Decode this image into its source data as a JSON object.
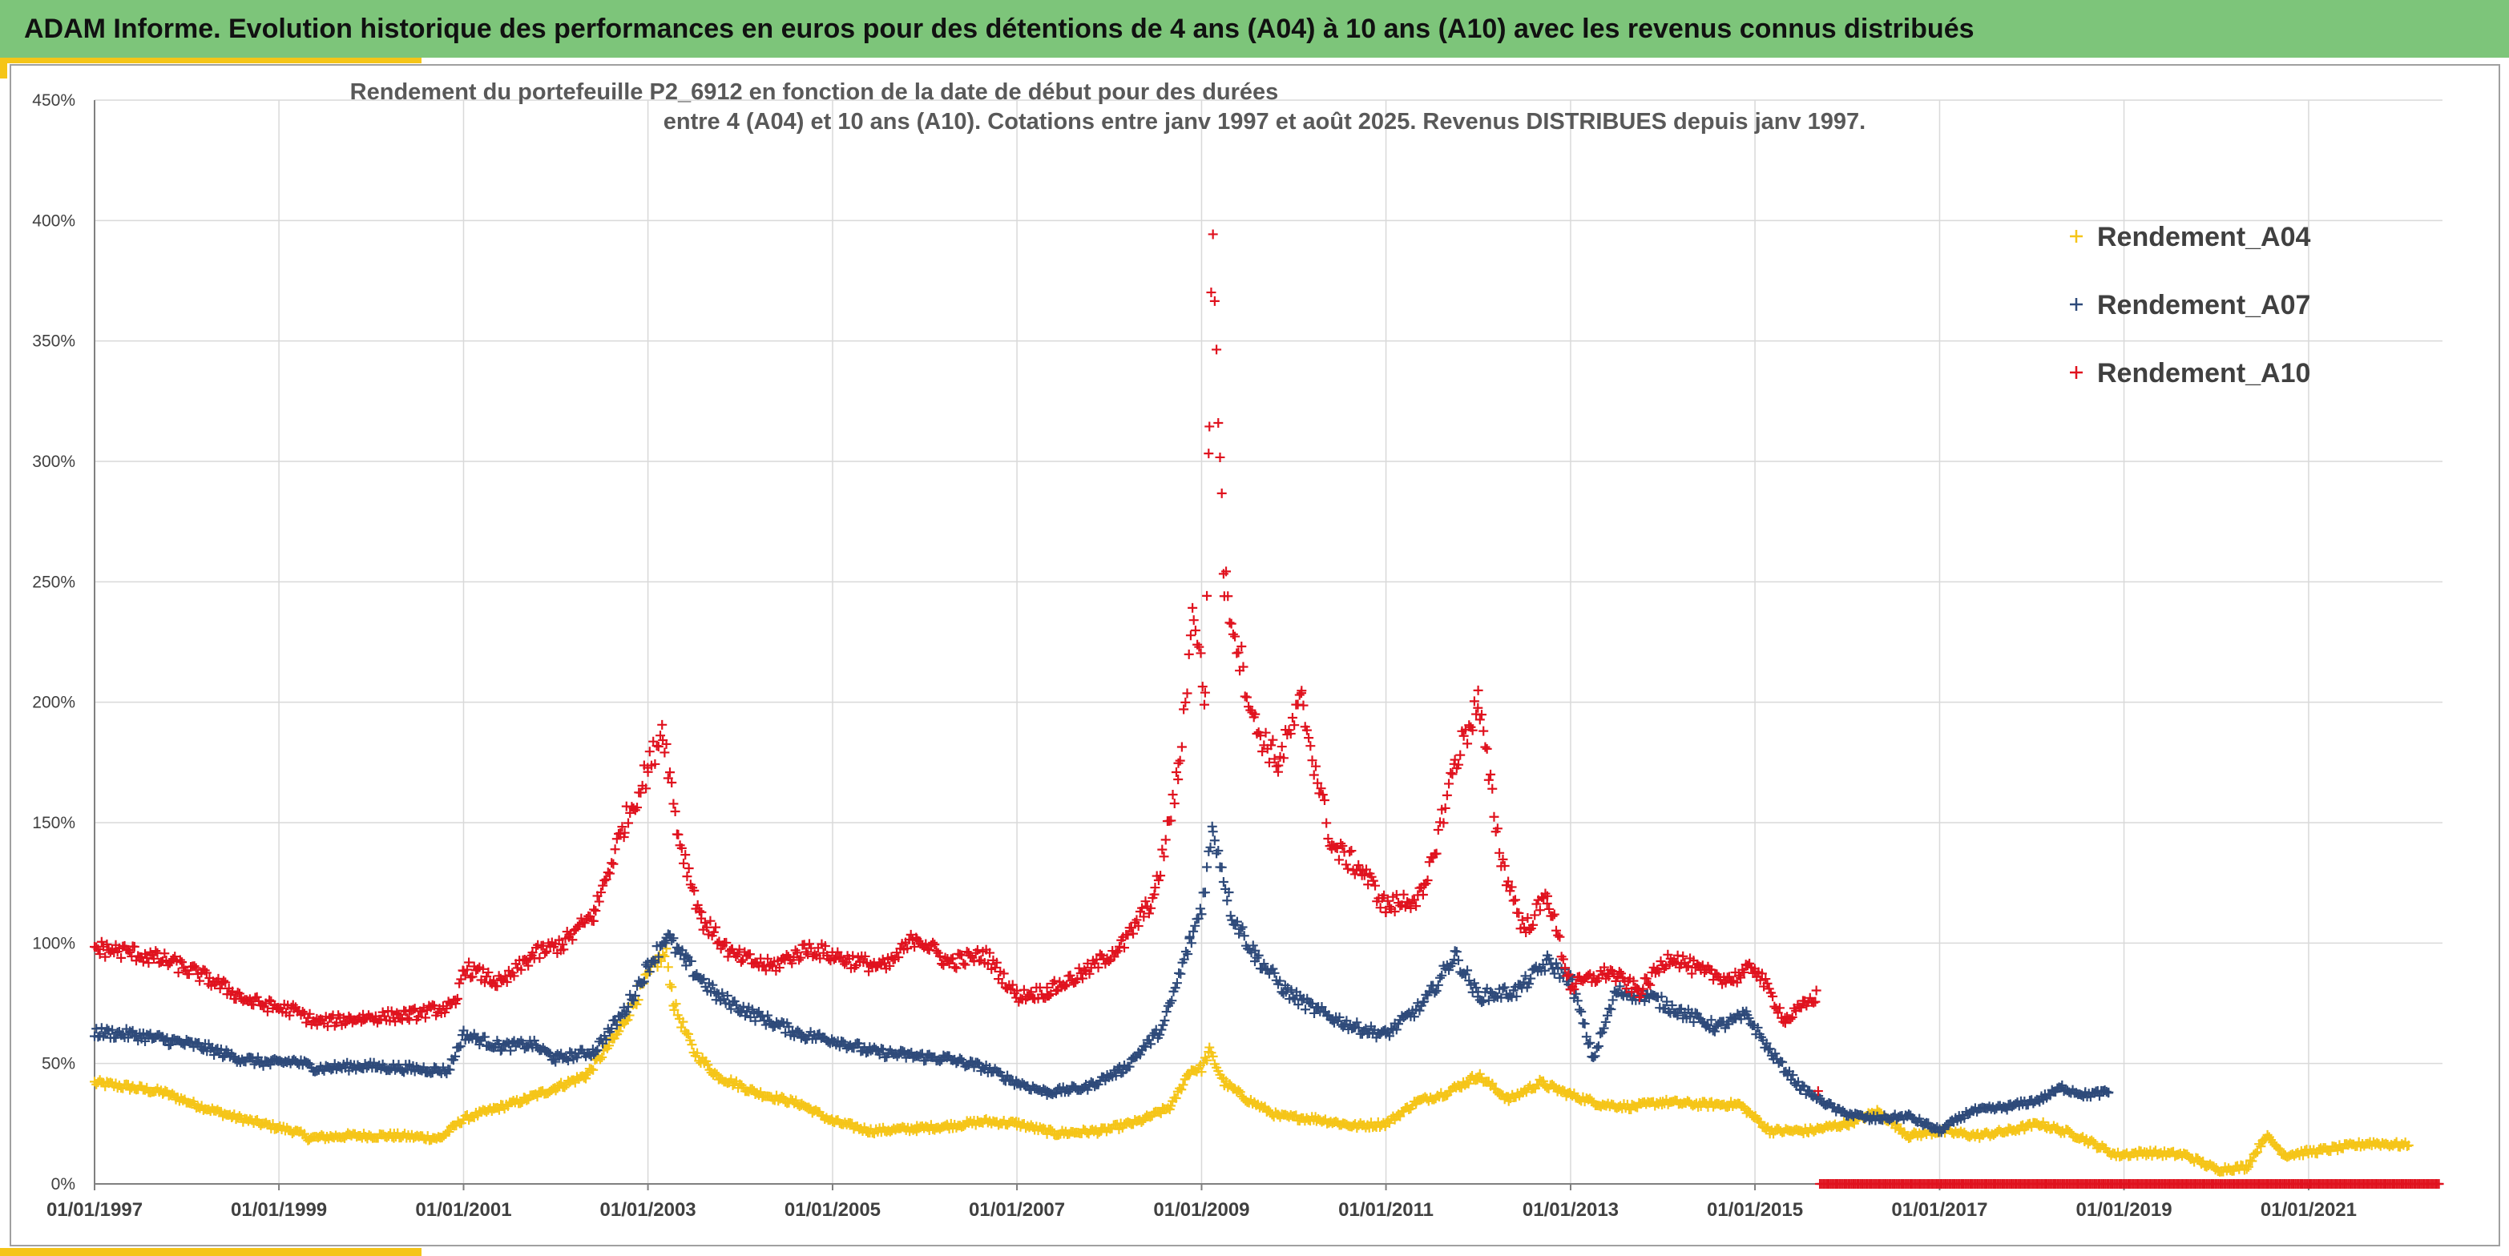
{
  "header": {
    "banner": "ADAM Informe. Evolution historique des performances en euros pour des détentions de 4 ans (A04) à 10 ans (A10) avec les revenus connus distribués"
  },
  "colors": {
    "banner_bg": "#7dc57a",
    "accent": "#f5c518",
    "a04": "#f5c518",
    "a07": "#2e4a7a",
    "a10": "#e0121e",
    "grid": "#d9d9d9"
  },
  "chart_data": {
    "type": "scatter",
    "title": [
      "Rendement du portefeuille P2_6912 en fonction de la date de début pour des durées",
      "entre 4 (A04) et 10 ans (A10). Cotations entre janv 1997 et août 2025. Revenus DISTRIBUES depuis janv 1997."
    ],
    "marker": "+",
    "grid": true,
    "legend_position": "top-right",
    "x_range": [
      "1997-01-01",
      "2022-06-15"
    ],
    "y_range": [
      0,
      450
    ],
    "y_unit": "%",
    "y_ticks": [
      "0%",
      "50%",
      "100%",
      "150%",
      "200%",
      "250%",
      "300%",
      "350%",
      "400%",
      "450%"
    ],
    "x_ticks": [
      "01/01/1997",
      "01/01/1999",
      "01/01/2001",
      "01/01/2003",
      "01/01/2005",
      "01/01/2007",
      "01/01/2009",
      "01/01/2011",
      "01/01/2013",
      "01/01/2015",
      "01/01/2017",
      "01/01/2019",
      "01/01/2021"
    ],
    "series": [
      {
        "name": "Rendement_A04",
        "color": "#f5c518",
        "points": [
          [
            "1997-01-01",
            42
          ],
          [
            "1997-06-01",
            40
          ],
          [
            "1997-10-01",
            38
          ],
          [
            "1998-02-01",
            33
          ],
          [
            "1998-07-01",
            28
          ],
          [
            "1998-12-01",
            24
          ],
          [
            "1999-03-01",
            22
          ],
          [
            "1999-05-01",
            19
          ],
          [
            "1999-10-01",
            20
          ],
          [
            "2000-04-01",
            20
          ],
          [
            "2000-10-01",
            19
          ],
          [
            "2001-01-01",
            27
          ],
          [
            "2001-05-01",
            31
          ],
          [
            "2001-09-01",
            35
          ],
          [
            "2002-01-01",
            40
          ],
          [
            "2002-05-01",
            45
          ],
          [
            "2002-09-01",
            62
          ],
          [
            "2002-12-01",
            80
          ],
          [
            "2003-02-01",
            92
          ],
          [
            "2003-03-15",
            95
          ],
          [
            "2003-04-15",
            74
          ],
          [
            "2003-07-01",
            55
          ],
          [
            "2003-10-01",
            45
          ],
          [
            "2004-03-01",
            38
          ],
          [
            "2004-09-01",
            33
          ],
          [
            "2005-01-01",
            26
          ],
          [
            "2005-06-01",
            22
          ],
          [
            "2005-12-01",
            23
          ],
          [
            "2006-04-01",
            24
          ],
          [
            "2006-09-01",
            26
          ],
          [
            "2007-01-01",
            25
          ],
          [
            "2007-06-01",
            21
          ],
          [
            "2007-12-01",
            22
          ],
          [
            "2008-05-01",
            26
          ],
          [
            "2008-09-01",
            32
          ],
          [
            "2008-11-15",
            47
          ],
          [
            "2009-01-01",
            48
          ],
          [
            "2009-02-01",
            55
          ],
          [
            "2009-04-01",
            42
          ],
          [
            "2009-07-01",
            35
          ],
          [
            "2009-11-01",
            28
          ],
          [
            "2010-04-01",
            27
          ],
          [
            "2010-09-01",
            24
          ],
          [
            "2011-01-01",
            25
          ],
          [
            "2011-05-01",
            34
          ],
          [
            "2011-09-01",
            38
          ],
          [
            "2012-01-01",
            45
          ],
          [
            "2012-05-01",
            35
          ],
          [
            "2012-09-01",
            42
          ],
          [
            "2013-01-01",
            37
          ],
          [
            "2013-05-01",
            33
          ],
          [
            "2013-09-01",
            32
          ],
          [
            "2014-01-01",
            34
          ],
          [
            "2014-06-01",
            33
          ],
          [
            "2014-11-01",
            33
          ],
          [
            "2015-03-01",
            22
          ],
          [
            "2015-08-01",
            22
          ],
          [
            "2016-01-01",
            25
          ],
          [
            "2016-05-01",
            30
          ],
          [
            "2016-09-01",
            20
          ],
          [
            "2017-01-01",
            22
          ],
          [
            "2017-06-01",
            20
          ],
          [
            "2017-10-01",
            22
          ],
          [
            "2018-02-01",
            25
          ],
          [
            "2018-07-01",
            20
          ],
          [
            "2018-12-01",
            12
          ],
          [
            "2019-04-01",
            13
          ],
          [
            "2019-09-01",
            12
          ],
          [
            "2020-01-01",
            6
          ],
          [
            "2020-05-01",
            7
          ],
          [
            "2020-07-15",
            20
          ],
          [
            "2020-10-01",
            12
          ],
          [
            "2021-03-01",
            14
          ],
          [
            "2021-09-01",
            17
          ],
          [
            "2022-02-01",
            16
          ]
        ]
      },
      {
        "name": "Rendement_A07",
        "color": "#2e4a7a",
        "points": [
          [
            "1997-01-01",
            63
          ],
          [
            "1997-06-01",
            62
          ],
          [
            "1997-10-01",
            60
          ],
          [
            "1998-03-01",
            57
          ],
          [
            "1998-08-01",
            52
          ],
          [
            "1998-12-01",
            50
          ],
          [
            "1999-03-01",
            51
          ],
          [
            "1999-06-01",
            48
          ],
          [
            "1999-12-01",
            49
          ],
          [
            "2000-06-01",
            48
          ],
          [
            "2000-11-01",
            47
          ],
          [
            "2001-01-01",
            62
          ],
          [
            "2001-06-01",
            57
          ],
          [
            "2001-10-01",
            58
          ],
          [
            "2002-01-01",
            52
          ],
          [
            "2002-06-01",
            55
          ],
          [
            "2002-10-01",
            72
          ],
          [
            "2003-01-01",
            90
          ],
          [
            "2003-03-15",
            103
          ],
          [
            "2003-06-01",
            92
          ],
          [
            "2003-10-01",
            78
          ],
          [
            "2004-03-01",
            70
          ],
          [
            "2004-09-01",
            62
          ],
          [
            "2005-01-01",
            60
          ],
          [
            "2005-06-01",
            55
          ],
          [
            "2005-12-01",
            53
          ],
          [
            "2006-04-01",
            52
          ],
          [
            "2006-09-01",
            48
          ],
          [
            "2007-01-01",
            42
          ],
          [
            "2007-05-01",
            38
          ],
          [
            "2007-10-01",
            40
          ],
          [
            "2008-03-01",
            48
          ],
          [
            "2008-08-01",
            65
          ],
          [
            "2008-11-15",
            100
          ],
          [
            "2009-01-01",
            115
          ],
          [
            "2009-02-15",
            148
          ],
          [
            "2009-05-01",
            112
          ],
          [
            "2009-08-01",
            95
          ],
          [
            "2009-12-01",
            80
          ],
          [
            "2010-04-01",
            72
          ],
          [
            "2010-09-01",
            65
          ],
          [
            "2011-01-01",
            62
          ],
          [
            "2011-06-01",
            75
          ],
          [
            "2011-10-01",
            95
          ],
          [
            "2012-01-01",
            78
          ],
          [
            "2012-06-01",
            80
          ],
          [
            "2012-10-01",
            92
          ],
          [
            "2013-01-01",
            85
          ],
          [
            "2013-04-01",
            52
          ],
          [
            "2013-07-01",
            80
          ],
          [
            "2013-11-01",
            78
          ],
          [
            "2014-03-01",
            72
          ],
          [
            "2014-08-01",
            65
          ],
          [
            "2014-12-01",
            70
          ],
          [
            "2015-03-01",
            55
          ],
          [
            "2015-07-01",
            40
          ],
          [
            "2015-12-01",
            30
          ],
          [
            "2016-04-01",
            27
          ],
          [
            "2016-09-01",
            28
          ],
          [
            "2017-01-01",
            22
          ],
          [
            "2017-05-01",
            30
          ],
          [
            "2017-10-01",
            32
          ],
          [
            "2018-02-01",
            35
          ],
          [
            "2018-05-01",
            40
          ],
          [
            "2018-08-01",
            37
          ],
          [
            "2018-11-01",
            38
          ]
        ]
      },
      {
        "name": "Rendement_A10",
        "color": "#e0121e",
        "points": [
          [
            "1997-01-01",
            98
          ],
          [
            "1997-06-01",
            96
          ],
          [
            "1997-11-01",
            92
          ],
          [
            "1998-04-01",
            85
          ],
          [
            "1998-09-01",
            76
          ],
          [
            "1999-01-01",
            73
          ],
          [
            "1999-03-01",
            72
          ],
          [
            "1999-06-01",
            67
          ],
          [
            "1999-12-01",
            69
          ],
          [
            "2000-06-01",
            70
          ],
          [
            "2000-12-01",
            74
          ],
          [
            "2001-01-01",
            90
          ],
          [
            "2001-06-01",
            83
          ],
          [
            "2001-10-01",
            95
          ],
          [
            "2002-02-01",
            100
          ],
          [
            "2002-06-01",
            112
          ],
          [
            "2002-10-01",
            150
          ],
          [
            "2003-01-01",
            172
          ],
          [
            "2003-03-01",
            190
          ],
          [
            "2003-05-01",
            145
          ],
          [
            "2003-08-01",
            110
          ],
          [
            "2003-12-01",
            95
          ],
          [
            "2004-05-01",
            90
          ],
          [
            "2004-10-01",
            98
          ],
          [
            "2005-03-01",
            93
          ],
          [
            "2005-08-01",
            90
          ],
          [
            "2005-12-01",
            103
          ],
          [
            "2006-04-01",
            92
          ],
          [
            "2006-09-01",
            95
          ],
          [
            "2007-01-01",
            78
          ],
          [
            "2007-05-01",
            80
          ],
          [
            "2007-10-01",
            88
          ],
          [
            "2008-03-01",
            100
          ],
          [
            "2008-07-01",
            120
          ],
          [
            "2008-10-01",
            170
          ],
          [
            "2008-12-01",
            240
          ],
          [
            "2009-01-15",
            200
          ],
          [
            "2009-02-01",
            323
          ],
          [
            "2009-02-15",
            395
          ],
          [
            "2009-03-01",
            345
          ],
          [
            "2009-04-01",
            250
          ],
          [
            "2009-06-01",
            220
          ],
          [
            "2009-08-01",
            190
          ],
          [
            "2009-11-01",
            175
          ],
          [
            "2010-02-01",
            200
          ],
          [
            "2010-06-01",
            140
          ],
          [
            "2010-10-01",
            130
          ],
          [
            "2011-01-01",
            115
          ],
          [
            "2011-06-01",
            120
          ],
          [
            "2011-10-01",
            175
          ],
          [
            "2012-01-01",
            200
          ],
          [
            "2012-04-01",
            135
          ],
          [
            "2012-07-01",
            105
          ],
          [
            "2012-10-01",
            120
          ],
          [
            "2013-01-01",
            82
          ],
          [
            "2013-06-01",
            88
          ],
          [
            "2013-10-01",
            80
          ],
          [
            "2014-02-01",
            95
          ],
          [
            "2014-06-01",
            88
          ],
          [
            "2014-10-01",
            85
          ],
          [
            "2015-01-01",
            90
          ],
          [
            "2015-05-01",
            68
          ],
          [
            "2015-09-01",
            78
          ],
          [
            "2015-09-15",
            0
          ],
          [
            "2016-06-01",
            0
          ],
          [
            "2017-06-01",
            0
          ],
          [
            "2018-06-01",
            0
          ],
          [
            "2019-06-01",
            0
          ],
          [
            "2020-06-01",
            0
          ],
          [
            "2021-06-01",
            0
          ],
          [
            "2022-06-01",
            0
          ]
        ]
      }
    ]
  }
}
